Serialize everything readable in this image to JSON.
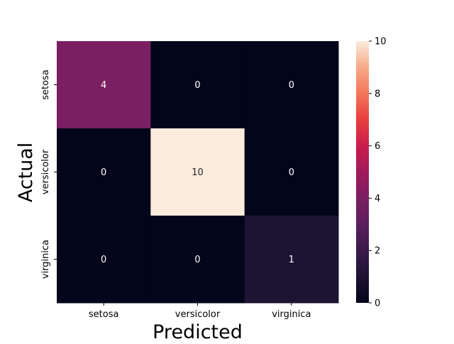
{
  "chart_data": {
    "type": "heatmap",
    "x_categories": [
      "setosa",
      "versicolor",
      "virginica"
    ],
    "y_categories": [
      "setosa",
      "versicolor",
      "virginica"
    ],
    "values": [
      [
        4,
        0,
        0
      ],
      [
        0,
        10,
        0
      ],
      [
        0,
        0,
        1
      ]
    ],
    "xlabel": "Predicted",
    "ylabel": "Actual",
    "colorbar": {
      "min": 0,
      "max": 10,
      "ticks": [
        "0",
        "2",
        "4",
        "6",
        "8",
        "10"
      ],
      "colormap": "rocket"
    },
    "annotations": true
  }
}
